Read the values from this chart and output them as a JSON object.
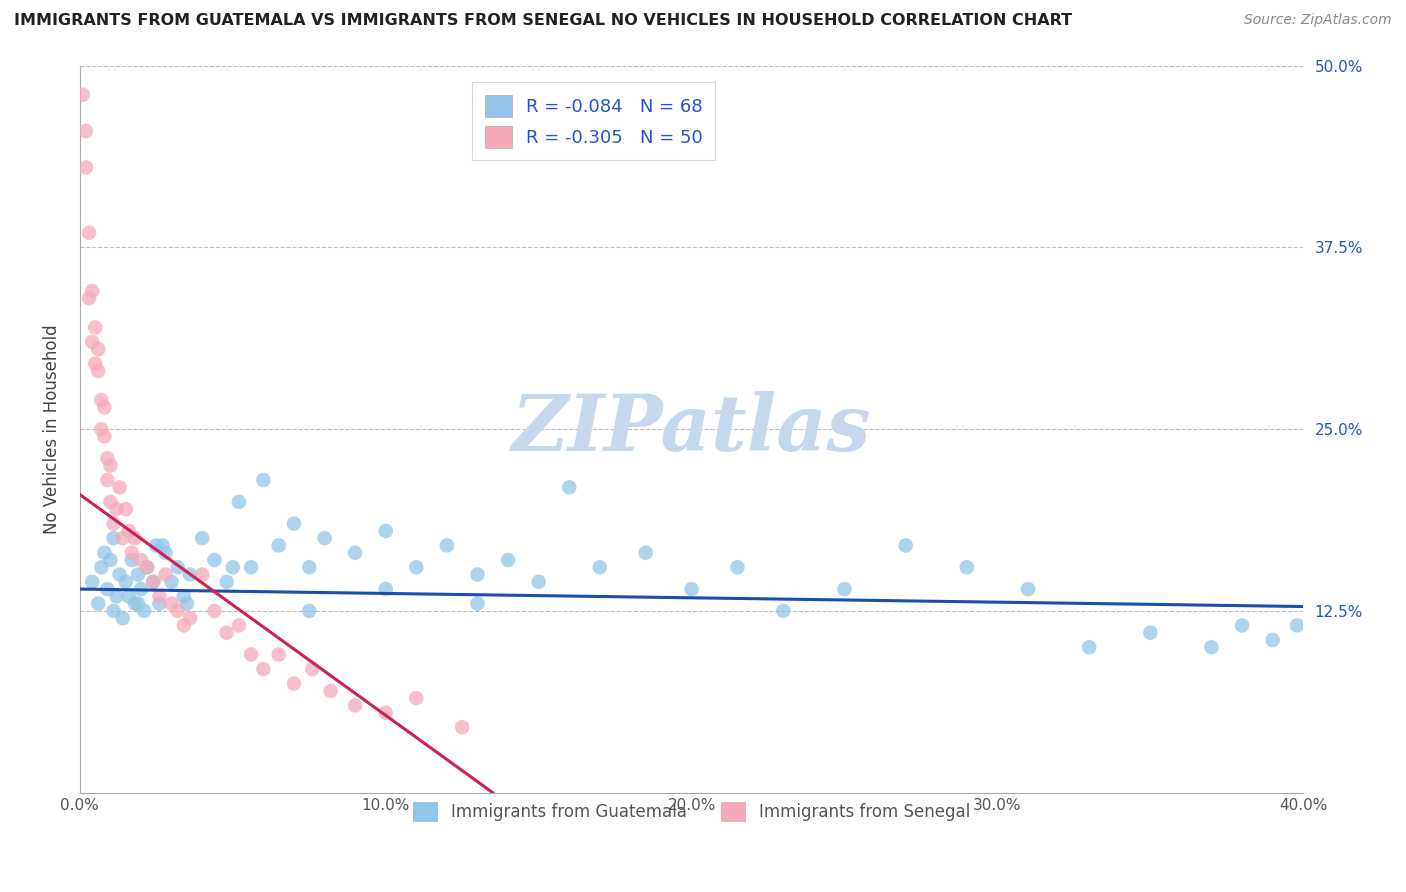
{
  "title": "IMMIGRANTS FROM GUATEMALA VS IMMIGRANTS FROM SENEGAL NO VEHICLES IN HOUSEHOLD CORRELATION CHART",
  "source": "Source: ZipAtlas.com",
  "ylabel": "No Vehicles in Household",
  "xlim": [
    0.0,
    0.4
  ],
  "ylim": [
    0.0,
    0.5
  ],
  "xticks": [
    0.0,
    0.1,
    0.2,
    0.3,
    0.4
  ],
  "yticks_right": [
    0.125,
    0.25,
    0.375,
    0.5
  ],
  "yticklabels_right": [
    "12.5%",
    "25.0%",
    "37.5%",
    "50.0%"
  ],
  "color_blue": "#92C5E8",
  "color_pink": "#F4AABA",
  "color_line_blue": "#1A4FAF",
  "color_line_pink": "#CC2255",
  "color_legend_text": "#2255CC",
  "color_grid": "#BBBBBB",
  "color_watermark": "#C8D8EC",
  "color_title": "#222222",
  "color_source": "#888888",
  "color_axis_text": "#555555",
  "color_right_axis": "#2255CC",
  "guatemala_x": [
    0.004,
    0.006,
    0.007,
    0.009,
    0.01,
    0.011,
    0.012,
    0.013,
    0.014,
    0.015,
    0.016,
    0.017,
    0.018,
    0.019,
    0.02,
    0.021,
    0.022,
    0.024,
    0.025,
    0.026,
    0.028,
    0.03,
    0.032,
    0.034,
    0.036,
    0.04,
    0.044,
    0.048,
    0.052,
    0.056,
    0.06,
    0.065,
    0.07,
    0.075,
    0.08,
    0.09,
    0.1,
    0.11,
    0.12,
    0.13,
    0.14,
    0.15,
    0.16,
    0.17,
    0.185,
    0.2,
    0.215,
    0.23,
    0.25,
    0.27,
    0.29,
    0.31,
    0.33,
    0.35,
    0.37,
    0.38,
    0.39,
    0.398,
    0.008,
    0.011,
    0.019,
    0.027,
    0.035,
    0.05,
    0.075,
    0.1,
    0.13
  ],
  "guatemala_y": [
    0.145,
    0.13,
    0.155,
    0.14,
    0.16,
    0.125,
    0.135,
    0.15,
    0.12,
    0.145,
    0.135,
    0.16,
    0.13,
    0.15,
    0.14,
    0.125,
    0.155,
    0.145,
    0.17,
    0.13,
    0.165,
    0.145,
    0.155,
    0.135,
    0.15,
    0.175,
    0.16,
    0.145,
    0.2,
    0.155,
    0.215,
    0.17,
    0.185,
    0.155,
    0.175,
    0.165,
    0.18,
    0.155,
    0.17,
    0.15,
    0.16,
    0.145,
    0.21,
    0.155,
    0.165,
    0.14,
    0.155,
    0.125,
    0.14,
    0.17,
    0.155,
    0.14,
    0.1,
    0.11,
    0.1,
    0.115,
    0.105,
    0.115,
    0.165,
    0.175,
    0.13,
    0.17,
    0.13,
    0.155,
    0.125,
    0.14,
    0.13
  ],
  "senegal_x": [
    0.001,
    0.002,
    0.002,
    0.003,
    0.003,
    0.004,
    0.004,
    0.005,
    0.005,
    0.006,
    0.006,
    0.007,
    0.007,
    0.008,
    0.008,
    0.009,
    0.009,
    0.01,
    0.01,
    0.011,
    0.012,
    0.013,
    0.014,
    0.015,
    0.016,
    0.017,
    0.018,
    0.02,
    0.022,
    0.024,
    0.026,
    0.028,
    0.03,
    0.032,
    0.034,
    0.036,
    0.04,
    0.044,
    0.048,
    0.052,
    0.056,
    0.06,
    0.065,
    0.07,
    0.076,
    0.082,
    0.09,
    0.1,
    0.11,
    0.125
  ],
  "senegal_y": [
    0.48,
    0.455,
    0.43,
    0.385,
    0.34,
    0.31,
    0.345,
    0.295,
    0.32,
    0.29,
    0.305,
    0.27,
    0.25,
    0.265,
    0.245,
    0.23,
    0.215,
    0.225,
    0.2,
    0.185,
    0.195,
    0.21,
    0.175,
    0.195,
    0.18,
    0.165,
    0.175,
    0.16,
    0.155,
    0.145,
    0.135,
    0.15,
    0.13,
    0.125,
    0.115,
    0.12,
    0.15,
    0.125,
    0.11,
    0.115,
    0.095,
    0.085,
    0.095,
    0.075,
    0.085,
    0.07,
    0.06,
    0.055,
    0.065,
    0.045
  ],
  "blue_line_x": [
    0.0,
    0.4
  ],
  "blue_line_y": [
    0.14,
    0.128
  ],
  "pink_line_x": [
    0.0,
    0.135
  ],
  "pink_line_y": [
    0.205,
    0.0
  ]
}
